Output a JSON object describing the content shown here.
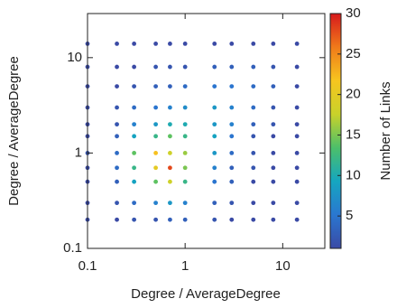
{
  "chart_data": {
    "type": "scatter",
    "xlabel": "Degree / AverageDegree",
    "ylabel": "Degree / AverageDegree",
    "colorbar_label": "Number of Links",
    "xscale": "log",
    "yscale": "log",
    "xlim": [
      0.1,
      27
    ],
    "ylim": [
      0.1,
      29
    ],
    "xticks": [
      0.1,
      1,
      10
    ],
    "yticks": [
      0.1,
      1,
      10
    ],
    "clim": [
      1,
      30
    ],
    "cticks": [
      5,
      10,
      15,
      20,
      25,
      30
    ],
    "colormap": [
      "#3a4aa5",
      "#2a77d0",
      "#15a6c0",
      "#4cbf6a",
      "#c9d22a",
      "#f7c51f",
      "#f07a1a",
      "#d7191c"
    ],
    "x": [
      0.1,
      0.2,
      0.3,
      0.5,
      0.7,
      1,
      2,
      3,
      5,
      8,
      14,
      0.1,
      0.2,
      0.3,
      0.5,
      0.7,
      1,
      2,
      3,
      5,
      8,
      14,
      0.1,
      0.2,
      0.3,
      0.5,
      0.7,
      1,
      2,
      3,
      5,
      8,
      14,
      0.1,
      0.2,
      0.3,
      0.5,
      0.7,
      1,
      2,
      3,
      5,
      8,
      14,
      0.1,
      0.2,
      0.3,
      0.5,
      0.7,
      1,
      2,
      3,
      5,
      8,
      14,
      0.1,
      0.2,
      0.3,
      0.5,
      0.7,
      1,
      2,
      3,
      5,
      8,
      14,
      0.1,
      0.2,
      0.3,
      0.5,
      0.7,
      1,
      2,
      3,
      5,
      8,
      14,
      0.1,
      0.2,
      0.3,
      0.5,
      0.7,
      1,
      2,
      3,
      5,
      8,
      14,
      0.1,
      0.2,
      0.3,
      0.5,
      0.7,
      1,
      2,
      3,
      5,
      8,
      14,
      0.1,
      0.2,
      0.3,
      0.5,
      0.7,
      1,
      2,
      3,
      5,
      8,
      14,
      0.1,
      0.2,
      0.3,
      0.5,
      0.7,
      1,
      2,
      3,
      5,
      8,
      14
    ],
    "y": [
      0.2,
      0.2,
      0.2,
      0.2,
      0.2,
      0.2,
      0.2,
      0.2,
      0.2,
      0.2,
      0.2,
      0.3,
      0.3,
      0.3,
      0.3,
      0.3,
      0.3,
      0.3,
      0.3,
      0.3,
      0.3,
      0.3,
      0.5,
      0.5,
      0.5,
      0.5,
      0.5,
      0.5,
      0.5,
      0.5,
      0.5,
      0.5,
      0.5,
      0.7,
      0.7,
      0.7,
      0.7,
      0.7,
      0.7,
      0.7,
      0.7,
      0.7,
      0.7,
      0.7,
      1,
      1,
      1,
      1,
      1,
      1,
      1,
      1,
      1,
      1,
      1,
      1.5,
      1.5,
      1.5,
      1.5,
      1.5,
      1.5,
      1.5,
      1.5,
      1.5,
      1.5,
      1.5,
      2,
      2,
      2,
      2,
      2,
      2,
      2,
      2,
      2,
      2,
      2,
      3,
      3,
      3,
      3,
      3,
      3,
      3,
      3,
      3,
      3,
      3,
      5,
      5,
      5,
      5,
      5,
      5,
      5,
      5,
      5,
      5,
      5,
      8,
      8,
      8,
      8,
      8,
      8,
      8,
      8,
      8,
      8,
      8,
      14,
      14,
      14,
      14,
      14,
      14,
      14,
      14,
      14,
      14,
      14
    ],
    "values": [
      1,
      1,
      2,
      2,
      3,
      3,
      2,
      1,
      1,
      1,
      1,
      1,
      2,
      4,
      6,
      8,
      6,
      3,
      2,
      1,
      1,
      1,
      1,
      3,
      9,
      14,
      18,
      12,
      5,
      3,
      1,
      1,
      1,
      1,
      4,
      12,
      20,
      28,
      15,
      6,
      3,
      2,
      1,
      1,
      2,
      4,
      14,
      22,
      18,
      16,
      8,
      4,
      2,
      1,
      1,
      1,
      3,
      9,
      12,
      14,
      12,
      9,
      5,
      2,
      1,
      1,
      1,
      2,
      6,
      8,
      10,
      10,
      8,
      6,
      3,
      2,
      1,
      1,
      2,
      4,
      5,
      6,
      7,
      8,
      6,
      4,
      2,
      1,
      1,
      1,
      2,
      3,
      3,
      4,
      5,
      5,
      4,
      3,
      1,
      1,
      1,
      1,
      2,
      2,
      2,
      3,
      3,
      3,
      2,
      1,
      1,
      1,
      1,
      1,
      1,
      1,
      1,
      1,
      1,
      1,
      1
    ]
  }
}
